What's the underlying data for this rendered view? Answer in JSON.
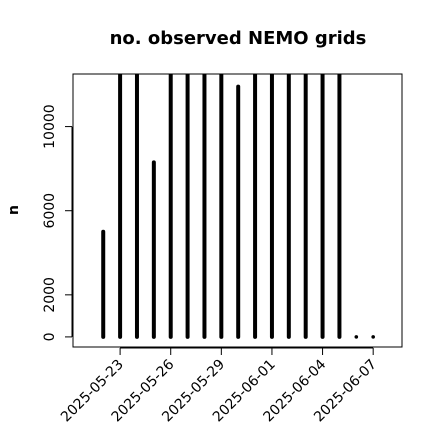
{
  "chart_data": {
    "type": "histogram_spikes",
    "title": "no. observed NEMO grids",
    "y_label": "n",
    "x": [
      "2025-05-22",
      "2025-05-23",
      "2025-05-24",
      "2025-05-25",
      "2025-05-26",
      "2025-05-27",
      "2025-05-28",
      "2025-05-29",
      "2025-05-30",
      "2025-05-31",
      "2025-06-01",
      "2025-06-02",
      "2025-06-03",
      "2025-06-04",
      "2025-06-05",
      "2025-06-06",
      "2025-06-07"
    ],
    "values": [
      5000,
      13000,
      13000,
      8300,
      13000,
      13000,
      13000,
      13000,
      11900,
      13000,
      13000,
      13000,
      13000,
      13000,
      13000,
      0,
      0
    ],
    "color": "#000000",
    "xlim": [
      "2025-05-20T05:00",
      "2025-06-08T17:00"
    ],
    "xticks": [
      "2025-05-23",
      "2025-05-26",
      "2025-05-29",
      "2025-06-01",
      "2025-06-04",
      "2025-06-07"
    ],
    "ylim": [
      -480,
      12500
    ],
    "yticks": [
      0,
      2000,
      6000,
      10000
    ]
  }
}
